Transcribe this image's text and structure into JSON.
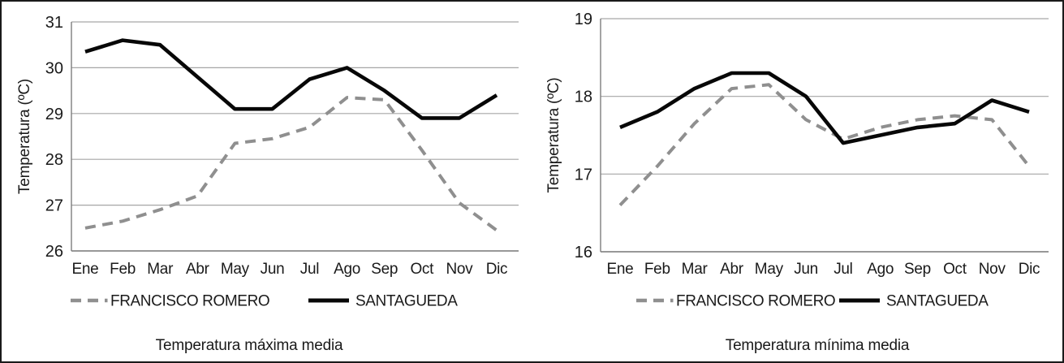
{
  "figure": {
    "background": "#ffffff",
    "border_color": "#1a1a1a",
    "gridline_color": "#a6a6a6",
    "axis_color": "#7d7d7d"
  },
  "chart_data": [
    {
      "type": "line",
      "title": "Temperatura máxima media",
      "ylabel": "Temperatura (ºC)",
      "xlabel": "",
      "ylim": [
        26,
        31
      ],
      "yticks": [
        31,
        30,
        29,
        28,
        27,
        26
      ],
      "grid": true,
      "legend_position": "bottom",
      "categories": [
        "Ene",
        "Feb",
        "Mar",
        "Abr",
        "May",
        "Jun",
        "Jul",
        "Ago",
        "Sep",
        "Oct",
        "Nov",
        "Dic"
      ],
      "series": [
        {
          "name": "FRANCISCO ROMERO",
          "style": "dashed",
          "color": "#8f8f8f",
          "values": [
            26.5,
            26.65,
            26.9,
            27.2,
            28.35,
            28.45,
            28.7,
            29.35,
            29.3,
            28.2,
            27.05,
            26.45
          ]
        },
        {
          "name": "SANTAGUEDA",
          "style": "solid",
          "color": "#070707",
          "values": [
            30.35,
            30.6,
            30.5,
            29.8,
            29.1,
            29.1,
            29.75,
            30.0,
            29.5,
            28.9,
            28.9,
            29.4
          ]
        }
      ]
    },
    {
      "type": "line",
      "title": "Temperatura mínima media",
      "ylabel": "Temperatura (ºC)",
      "xlabel": "",
      "ylim": [
        16,
        19
      ],
      "yticks": [
        19,
        18,
        17,
        16
      ],
      "grid": true,
      "legend_position": "bottom",
      "categories": [
        "Ene",
        "Feb",
        "Mar",
        "Abr",
        "May",
        "Jun",
        "Jul",
        "Ago",
        "Sep",
        "Oct",
        "Nov",
        "Dic"
      ],
      "series": [
        {
          "name": "FRANCISCO ROMERO",
          "style": "dashed",
          "color": "#8f8f8f",
          "values": [
            16.6,
            17.1,
            17.65,
            18.1,
            18.15,
            17.7,
            17.45,
            17.6,
            17.7,
            17.75,
            17.7,
            17.1
          ]
        },
        {
          "name": "SANTAGUEDA",
          "style": "solid",
          "color": "#070707",
          "values": [
            17.6,
            17.8,
            18.1,
            18.3,
            18.3,
            18.0,
            17.4,
            17.5,
            17.6,
            17.65,
            17.95,
            17.8
          ]
        }
      ]
    }
  ]
}
